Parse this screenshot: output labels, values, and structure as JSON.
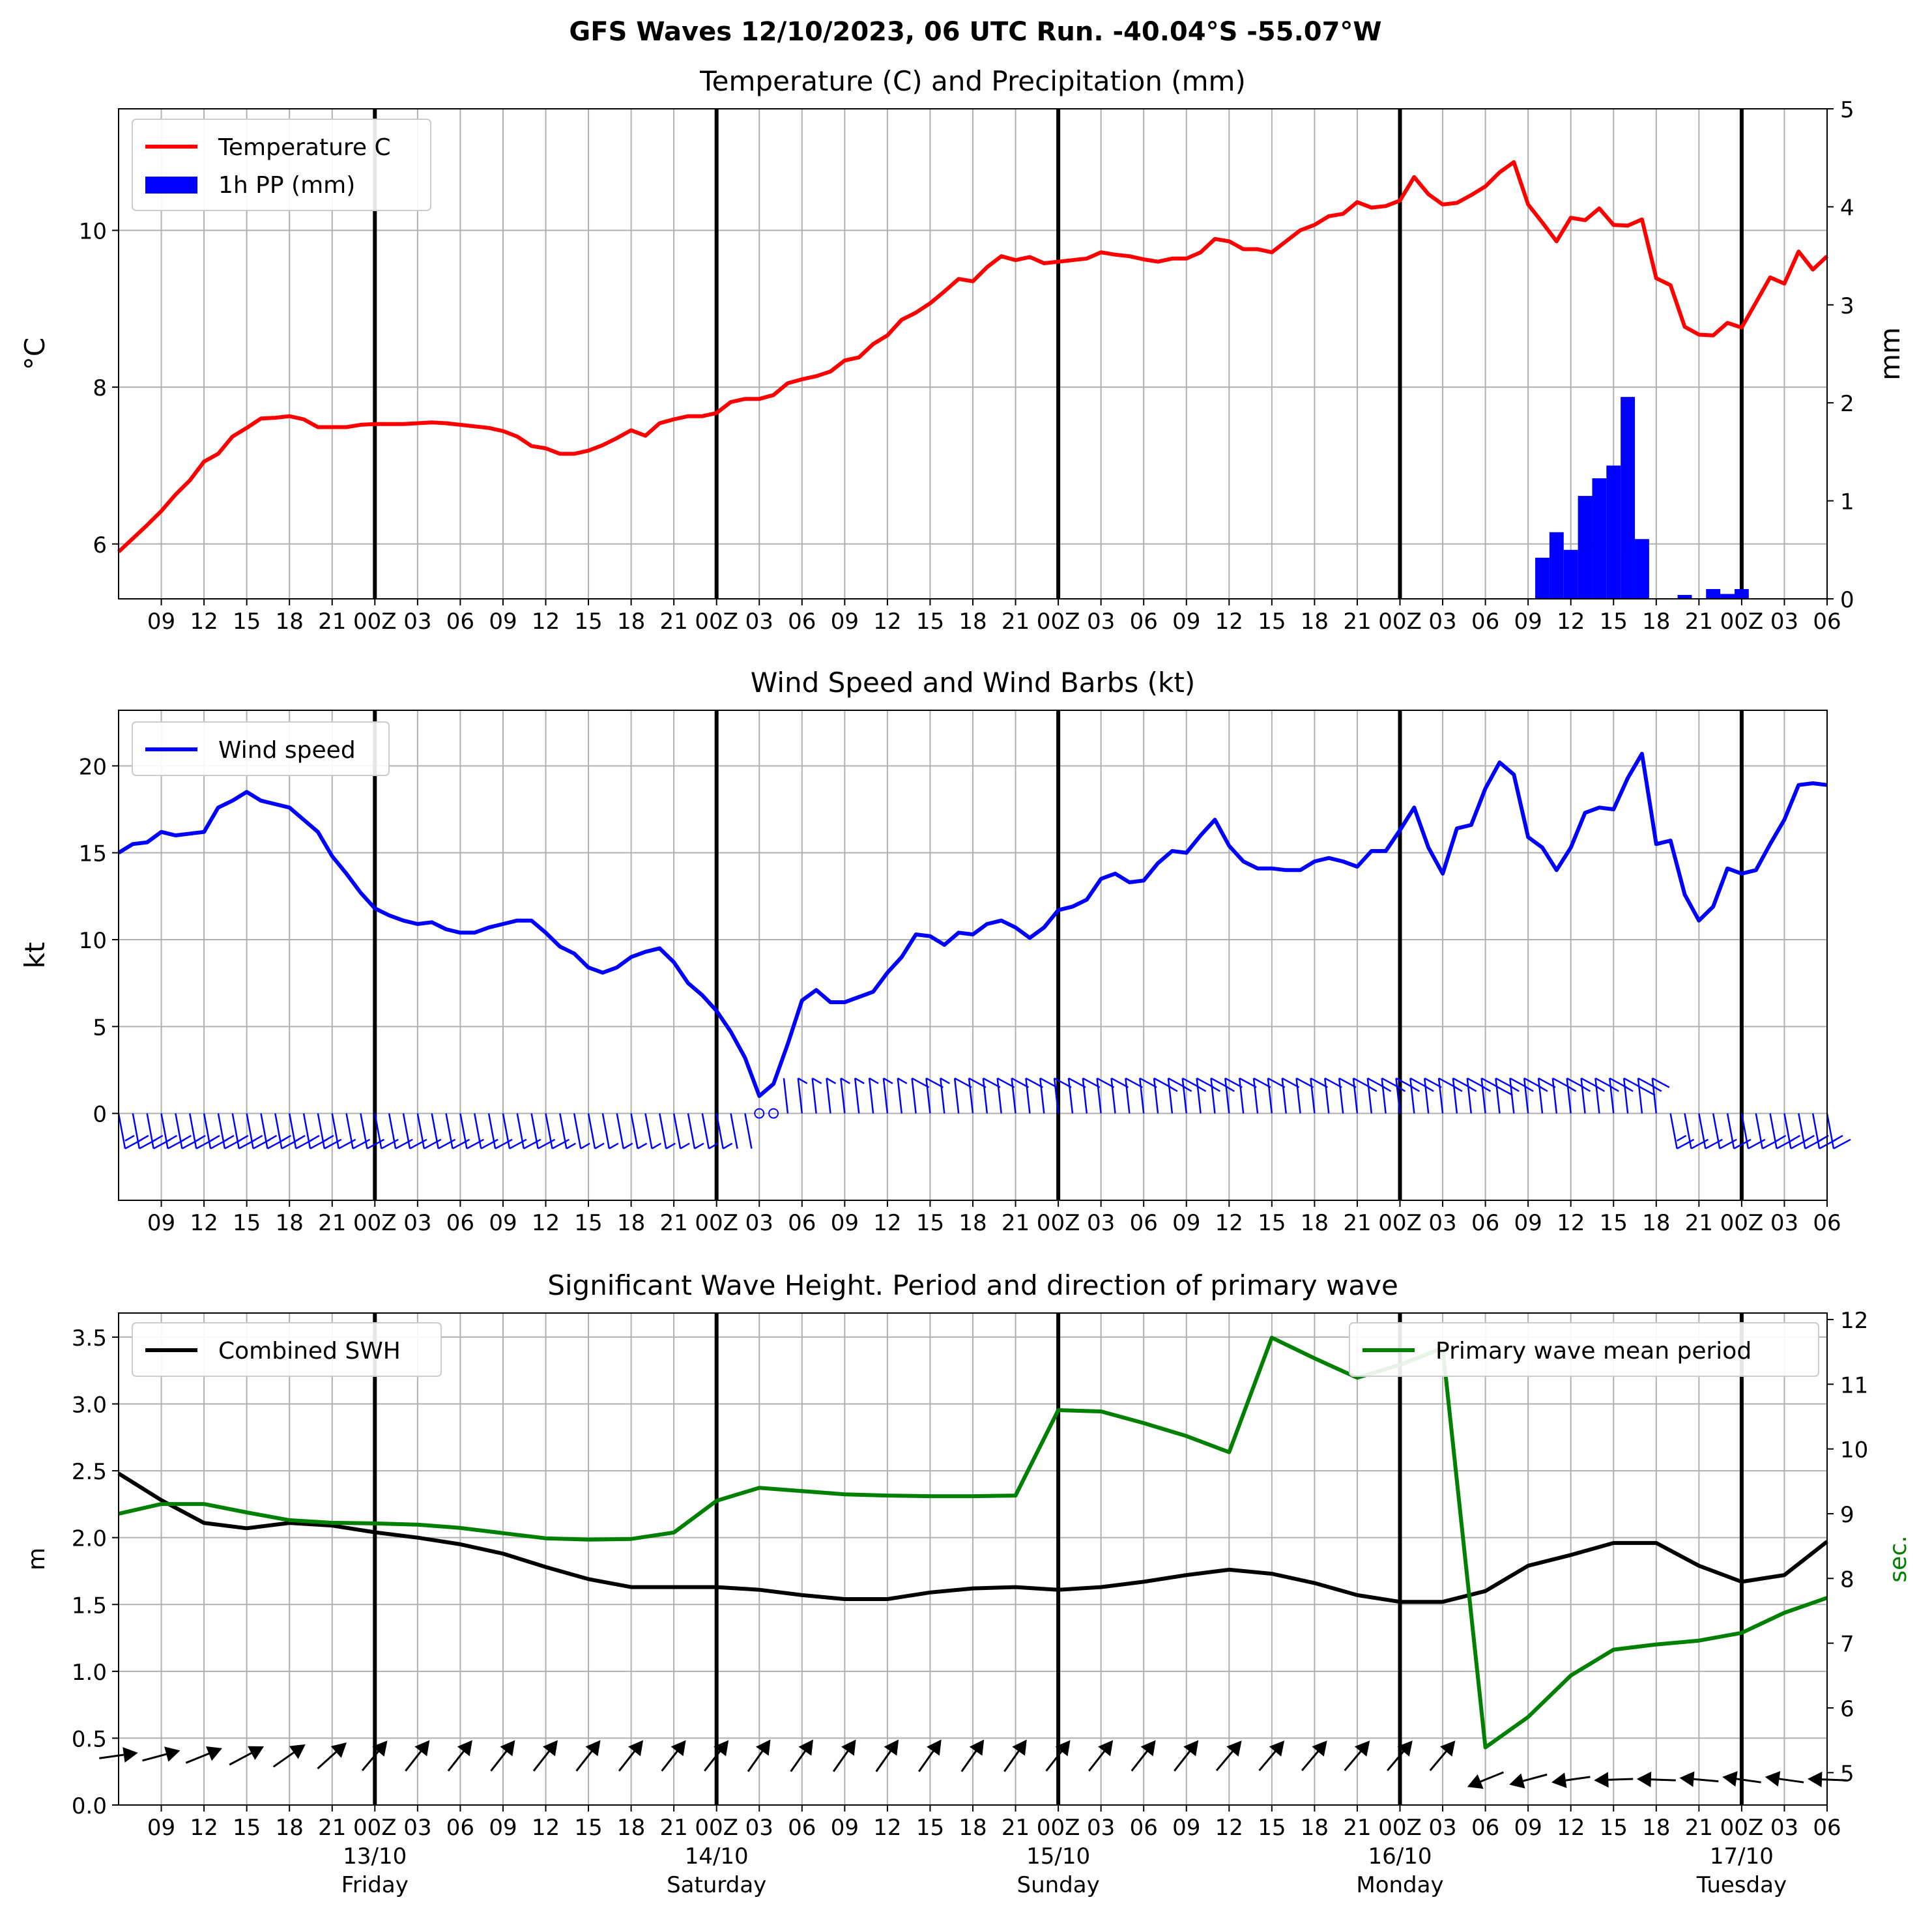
{
  "suptitle": "GFS Waves 12/10/2023, 06 UTC Run. -40.04°S -55.07°W",
  "time_axis": {
    "tick_labels": [
      "09",
      "12",
      "15",
      "18",
      "21",
      "00Z",
      "03",
      "06",
      "09",
      "12",
      "15",
      "18",
      "21",
      "00Z",
      "03",
      "06",
      "09",
      "12",
      "15",
      "18",
      "21",
      "00Z",
      "03",
      "06",
      "09",
      "12",
      "15",
      "18",
      "21",
      "00Z",
      "03",
      "06",
      "09",
      "12",
      "15",
      "18",
      "21",
      "00Z",
      "03",
      "06"
    ],
    "midnight_labels": [
      "00Z",
      "00Z",
      "00Z",
      "00Z",
      "00Z"
    ],
    "dates": [
      "13/10",
      "14/10",
      "15/10",
      "16/10",
      "17/10"
    ],
    "days": [
      "Friday",
      "Saturday",
      "Sunday",
      "Monday",
      "Tuesday"
    ]
  },
  "chart_data": [
    {
      "type": "line",
      "title": "Temperature (C) and Precipitation (mm)",
      "ylabel": "$^\\circ$C",
      "y2label": "mm",
      "ylim": [
        5.3,
        11.55
      ],
      "y2lim": [
        0,
        5
      ],
      "yticks": [
        "6",
        "8",
        "10"
      ],
      "y2ticks": [
        "0",
        "1",
        "2",
        "3",
        "4",
        "5"
      ],
      "legend": [
        "Temperature C",
        "1h PP (mm)"
      ],
      "legend_position": "upper left",
      "series": [
        {
          "name": "Temperature C",
          "color": "#ff0000",
          "hours": [
            0,
            1,
            2,
            3,
            4,
            5,
            6,
            7,
            8,
            9,
            10,
            11,
            12,
            13,
            14,
            15,
            16,
            17,
            18,
            19,
            20,
            21,
            22,
            23,
            24,
            25,
            26,
            27,
            28,
            29,
            30,
            31,
            32,
            33,
            34,
            35,
            36,
            37,
            38,
            39,
            40,
            41,
            42,
            43,
            44,
            45,
            46,
            47,
            48,
            49,
            50,
            51,
            52,
            53,
            54,
            55,
            56,
            57,
            58,
            59,
            60,
            61,
            62,
            63,
            64,
            65,
            66,
            67,
            68,
            69,
            70,
            71,
            72,
            73,
            74,
            75,
            76,
            77,
            78,
            79,
            80,
            81,
            82,
            83,
            84,
            85,
            86,
            87,
            88,
            89,
            90,
            91,
            92,
            93,
            94,
            95,
            96,
            97,
            98,
            99,
            100,
            101,
            102,
            103,
            104,
            105,
            106,
            107,
            108,
            109,
            110,
            111,
            112,
            113,
            114,
            115,
            116,
            117,
            118,
            119,
            120
          ],
          "values": [
            5.9,
            6.07,
            6.24,
            6.42,
            6.63,
            6.81,
            7.05,
            7.15,
            7.37,
            7.48,
            7.6,
            7.61,
            7.63,
            7.59,
            7.49,
            7.49,
            7.49,
            7.52,
            7.53,
            7.53,
            7.53,
            7.54,
            7.55,
            7.54,
            7.52,
            7.5,
            7.48,
            7.44,
            7.37,
            7.25,
            7.22,
            7.15,
            7.15,
            7.19,
            7.26,
            7.35,
            7.45,
            7.38,
            7.54,
            7.59,
            7.63,
            7.63,
            7.67,
            7.81,
            7.85,
            7.85,
            7.9,
            8.05,
            8.1,
            8.14,
            8.2,
            8.34,
            8.38,
            8.55,
            8.66,
            8.86,
            8.95,
            9.07,
            9.22,
            9.38,
            9.35,
            9.53,
            9.67,
            9.62,
            9.66,
            9.58,
            9.6,
            9.62,
            9.64,
            9.72,
            9.69,
            9.67,
            9.63,
            9.6,
            9.64,
            9.64,
            9.72,
            9.89,
            9.86,
            9.76,
            9.76,
            9.72,
            9.86,
            10.0,
            10.07,
            10.18,
            10.21,
            10.36,
            10.29,
            10.31,
            10.38,
            10.68,
            10.46,
            10.33,
            10.35,
            10.45,
            10.56,
            10.74,
            10.87,
            10.33,
            10.1,
            9.86,
            10.16,
            10.13,
            10.28,
            10.07,
            10.06,
            10.14,
            9.39,
            9.3,
            8.77,
            8.67,
            8.66,
            8.82,
            8.76,
            9.08,
            9.4,
            9.32,
            9.73,
            9.5,
            9.67
          ]
        },
        {
          "name": "1h PP (mm)",
          "color": "#0000ff",
          "type": "bar",
          "hours": [
            100,
            101,
            102,
            103,
            104,
            105,
            106,
            107,
            110,
            112,
            113,
            114,
            115,
            116,
            116.5
          ],
          "values": [
            0.42,
            0.68,
            0.5,
            1.05,
            1.23,
            1.36,
            2.06,
            0.61,
            0.04,
            0.1,
            0.05,
            0.1,
            0.0,
            0.0,
            0.0
          ]
        }
      ]
    },
    {
      "type": "line",
      "title": "Wind Speed and Wind Barbs (kt)",
      "ylabel": "kt",
      "ylim": [
        -5,
        23.2
      ],
      "yticks": [
        "0",
        "5",
        "10",
        "15",
        "20"
      ],
      "legend": [
        "Wind speed"
      ],
      "legend_position": "upper left",
      "series": [
        {
          "name": "Wind speed",
          "color": "#0000ff",
          "hours": [
            0,
            1,
            2,
            3,
            4,
            5,
            6,
            7,
            8,
            9,
            10,
            11,
            12,
            13,
            14,
            15,
            16,
            17,
            18,
            19,
            20,
            21,
            22,
            23,
            24,
            25,
            26,
            27,
            28,
            29,
            30,
            31,
            32,
            33,
            34,
            35,
            36,
            37,
            38,
            39,
            40,
            41,
            42,
            43,
            44,
            45,
            46,
            47,
            48,
            49,
            50,
            51,
            52,
            53,
            54,
            55,
            56,
            57,
            58,
            59,
            60,
            61,
            62,
            63,
            64,
            65,
            66,
            67,
            68,
            69,
            70,
            71,
            72,
            73,
            74,
            75,
            76,
            77,
            78,
            79,
            80,
            81,
            82,
            83,
            84,
            85,
            86,
            87,
            88,
            89,
            90,
            91,
            92,
            93,
            94,
            95,
            96,
            97,
            98,
            99,
            100,
            101,
            102,
            103,
            104,
            105,
            106,
            107,
            108,
            109,
            110,
            111,
            112,
            113,
            114,
            115,
            116,
            117,
            118,
            119,
            120
          ],
          "values": [
            15.0,
            15.5,
            15.6,
            16.2,
            16.0,
            16.1,
            16.2,
            17.6,
            18.0,
            18.5,
            18.0,
            17.8,
            17.6,
            16.9,
            16.2,
            14.8,
            13.8,
            12.7,
            11.8,
            11.4,
            11.1,
            10.9,
            11.0,
            10.6,
            10.4,
            10.4,
            10.7,
            10.9,
            11.1,
            11.1,
            10.4,
            9.6,
            9.2,
            8.4,
            8.1,
            8.4,
            9.0,
            9.3,
            9.5,
            8.7,
            7.5,
            6.8,
            5.9,
            4.7,
            3.2,
            1.0,
            1.7,
            4.0,
            6.5,
            7.1,
            6.4,
            6.4,
            6.7,
            7.0,
            8.1,
            9.0,
            10.3,
            10.2,
            9.7,
            10.4,
            10.3,
            10.9,
            11.1,
            10.7,
            10.1,
            10.7,
            11.7,
            11.9,
            12.3,
            13.5,
            13.8,
            13.3,
            13.4,
            14.4,
            15.1,
            15.0,
            16.0,
            16.9,
            15.4,
            14.5,
            14.1,
            14.1,
            14.0,
            14.0,
            14.5,
            14.7,
            14.5,
            14.2,
            15.1,
            15.1,
            16.3,
            17.6,
            15.3,
            13.8,
            16.4,
            16.6,
            18.7,
            20.2,
            19.5,
            15.9,
            15.3,
            14.0,
            15.3,
            17.3,
            17.6,
            17.5,
            19.3,
            20.7,
            15.5,
            15.7,
            12.6,
            11.1,
            11.9,
            14.1,
            13.8,
            14.0,
            15.5,
            16.9,
            18.9,
            19.0,
            18.9
          ]
        }
      ]
    },
    {
      "type": "line",
      "title": "Significant Wave Height. Period and direction of primary wave",
      "ylabel": "m",
      "y2label": "sec.",
      "ylim": [
        0,
        3.68
      ],
      "y2lim": [
        4.5,
        12.1
      ],
      "yticks": [
        "0.0",
        "0.5",
        "1.0",
        "1.5",
        "2.0",
        "2.5",
        "3.0",
        "3.5"
      ],
      "y2ticks": [
        "5",
        "6",
        "7",
        "8",
        "9",
        "10",
        "11",
        "12"
      ],
      "legend": [
        "Combined SWH",
        "Primary wave mean period"
      ],
      "series": [
        {
          "name": "Combined SWH",
          "color": "#000000",
          "hours": [
            0,
            3,
            6,
            9,
            12,
            15,
            18,
            21,
            24,
            27,
            30,
            33,
            36,
            39,
            42,
            45,
            48,
            51,
            54,
            57,
            60,
            63,
            66,
            69,
            72,
            75,
            78,
            81,
            84,
            87,
            90,
            93,
            96,
            99,
            102,
            105,
            108,
            111,
            114,
            117,
            120
          ],
          "values": [
            2.48,
            2.28,
            2.11,
            2.07,
            2.11,
            2.09,
            2.04,
            2.0,
            1.95,
            1.88,
            1.78,
            1.69,
            1.63,
            1.63,
            1.63,
            1.61,
            1.57,
            1.54,
            1.54,
            1.59,
            1.62,
            1.63,
            1.61,
            1.63,
            1.67,
            1.72,
            1.76,
            1.73,
            1.66,
            1.57,
            1.52,
            1.52,
            1.6,
            1.79,
            1.87,
            1.96,
            1.96,
            1.79,
            1.67,
            1.72,
            1.97
          ]
        },
        {
          "name": "Primary wave mean period",
          "color": "#008000",
          "hours": [
            0,
            3,
            6,
            9,
            12,
            15,
            18,
            21,
            24,
            27,
            30,
            33,
            36,
            39,
            42,
            45,
            48,
            51,
            54,
            57,
            60,
            63,
            66,
            69,
            72,
            75,
            78,
            81,
            84,
            87,
            90,
            93,
            96,
            99,
            102,
            105,
            108,
            111,
            114,
            117,
            120
          ],
          "values": [
            9.0,
            9.15,
            9.15,
            9.02,
            8.9,
            8.86,
            8.85,
            8.83,
            8.78,
            8.7,
            8.62,
            8.6,
            8.61,
            8.71,
            9.2,
            9.4,
            9.35,
            9.3,
            9.28,
            9.27,
            9.27,
            9.28,
            10.6,
            10.58,
            10.4,
            10.2,
            9.95,
            11.72,
            11.4,
            11.1,
            11.3,
            11.56,
            5.39,
            5.86,
            6.5,
            6.9,
            6.98,
            7.04,
            7.16,
            7.47,
            7.7
          ]
        }
      ],
      "wave_direction_arrows": {
        "hours": [
          0,
          3,
          6,
          9,
          12,
          15,
          18,
          21,
          24,
          27,
          30,
          33,
          36,
          39,
          42,
          45,
          48,
          51,
          54,
          57,
          60,
          63,
          66,
          69,
          72,
          75,
          78,
          81,
          84,
          87,
          90,
          93,
          96,
          99,
          102,
          105,
          108,
          111,
          114,
          117,
          120
        ],
        "direction_deg": [
          242,
          235,
          228,
          222,
          215,
          208,
          200,
          198,
          198,
          198,
          198,
          198,
          198,
          198,
          198,
          195,
          195,
          195,
          195,
          195,
          195,
          195,
          198,
          198,
          198,
          198,
          200,
          200,
          200,
          200,
          200,
          200,
          38,
          45,
          52,
          58,
          62,
          65,
          68,
          68,
          62
        ],
        "color": "#000000"
      }
    }
  ]
}
